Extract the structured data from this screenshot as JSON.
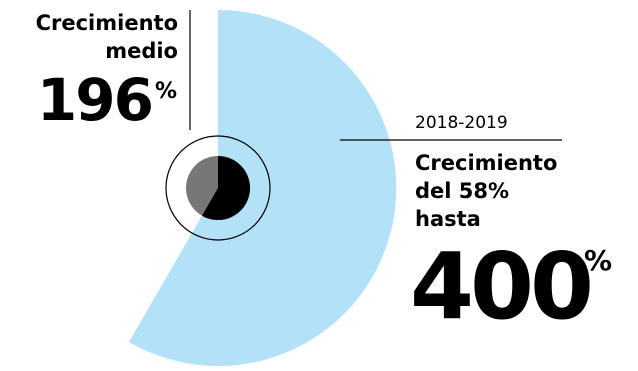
{
  "left": {
    "title_lines": [
      "Crecimiento",
      "medio"
    ],
    "value": "196",
    "unit": "%"
  },
  "right": {
    "period": "2018-2019",
    "title_lines": [
      "Crecimiento",
      "del 58%",
      "hasta"
    ],
    "value": "400",
    "unit": "%"
  }
}
